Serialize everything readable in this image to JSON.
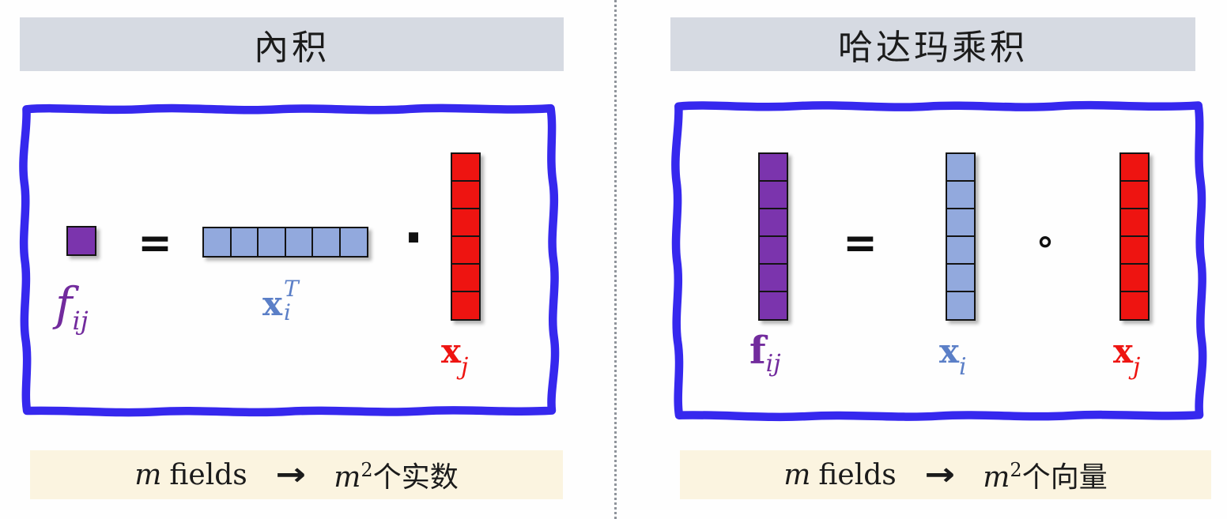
{
  "colors": {
    "border_blue": "#3628ee",
    "title_bg": "#d6dae2",
    "caption_bg": "#fbf4e0",
    "purple": "#7b34ad",
    "light_blue": "#92a9dd",
    "red": "#ee1411",
    "label_purple": "#722b9d",
    "label_blue": "#5b7fc7",
    "label_red": "#ee1411",
    "text_black": "#1b1b1b"
  },
  "left": {
    "title": "內积",
    "result": {
      "cells": 1,
      "label": {
        "base": "f",
        "sub": "ij"
      }
    },
    "equals": "=",
    "operand1": {
      "cells": 6,
      "label": {
        "base": "x",
        "sub": "i",
        "sup": "T"
      }
    },
    "operator": "·",
    "operand2": {
      "cells": 6,
      "label": {
        "base": "x",
        "sub": "j"
      }
    },
    "caption": {
      "m": "m",
      "fields": "fields",
      "arrow": "→",
      "m2": "m",
      "exp": "2",
      "suffix": "个实数"
    }
  },
  "right": {
    "title": "哈达玛乘积",
    "result": {
      "cells": 6,
      "label": {
        "base": "f",
        "sub": "ij"
      }
    },
    "equals": "=",
    "operand1": {
      "cells": 6,
      "label": {
        "base": "x",
        "sub": "i"
      }
    },
    "operator": "∘",
    "operand2": {
      "cells": 6,
      "label": {
        "base": "x",
        "sub": "j"
      }
    },
    "caption": {
      "m": "m",
      "fields": "fields",
      "arrow": "→",
      "m2": "m",
      "exp": "2",
      "suffix": "个向量"
    }
  }
}
